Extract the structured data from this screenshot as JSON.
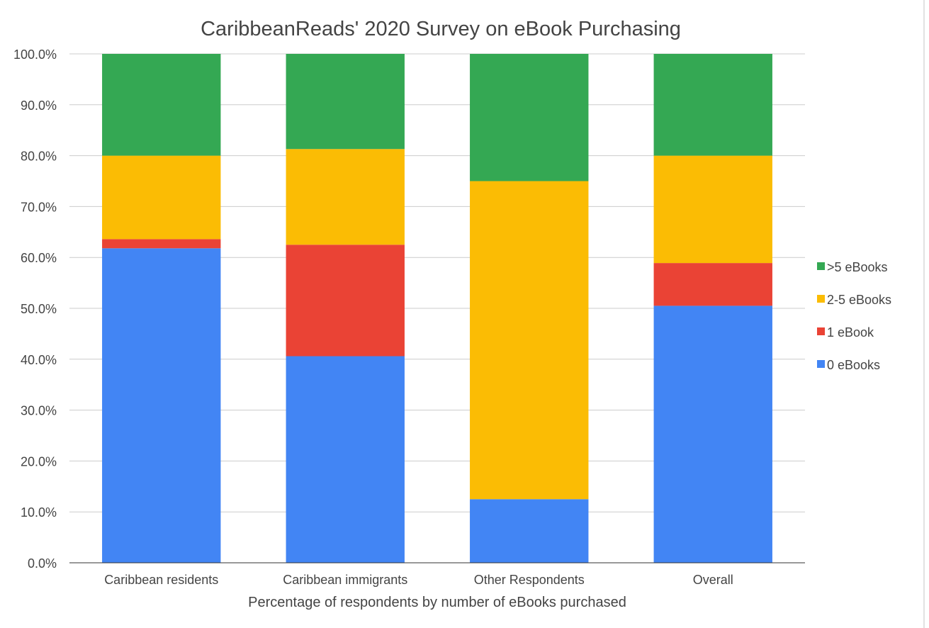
{
  "chart_data": {
    "type": "bar",
    "stacked": true,
    "title": "CaribbeanReads' 2020 Survey on eBook Purchasing",
    "xlabel": "Percentage of respondents by number of eBooks purchased",
    "ylabel": "",
    "ylim": [
      0,
      100
    ],
    "ytick_labels": [
      "0.0%",
      "10.0%",
      "20.0%",
      "30.0%",
      "40.0%",
      "50.0%",
      "60.0%",
      "70.0%",
      "80.0%",
      "90.0%",
      "100.0%"
    ],
    "grid": true,
    "legend_position": "right",
    "categories": [
      "Caribbean residents",
      "Caribbean immigrants",
      "Other Respondents",
      "Overall"
    ],
    "series": [
      {
        "name": "0 eBooks",
        "color": "#4285f4",
        "values": [
          61.8,
          40.6,
          12.5,
          50.5
        ]
      },
      {
        "name": "1 eBook",
        "color": "#ea4335",
        "values": [
          1.8,
          21.9,
          0.0,
          8.4
        ]
      },
      {
        "name": "2-5 eBooks",
        "color": "#fbbc04",
        "values": [
          16.4,
          18.8,
          62.5,
          21.1
        ]
      },
      {
        "name": ">5 eBooks",
        "color": "#34a853",
        "values": [
          20.0,
          18.7,
          25.0,
          20.0
        ]
      }
    ]
  }
}
